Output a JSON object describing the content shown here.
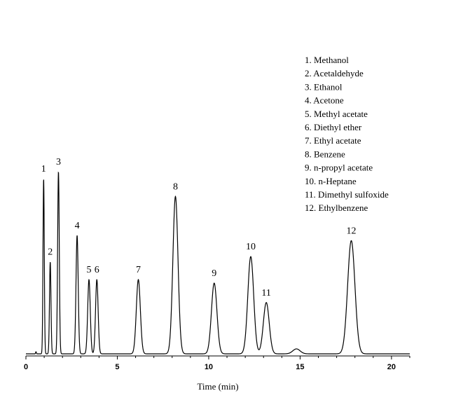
{
  "chart_data": {
    "type": "line",
    "xlabel": "Time (min)",
    "ylabel": "",
    "xlim": [
      0,
      21
    ],
    "xticks": [
      0,
      5,
      10,
      15,
      20
    ],
    "grid": false,
    "legend_position": "top-right",
    "legend": [
      "1. Methanol",
      "2. Acetaldehyde",
      "3. Ethanol",
      "4. Acetone",
      "5. Methyl acetate",
      "6. Diethyl ether",
      "7. Ethyl acetate",
      "8. Benzene",
      "9. n-propyl acetate",
      "10. n-Heptane",
      "11. Dimethyl sulfoxide",
      "12. Ethylbenzene"
    ],
    "peaks": [
      {
        "label": "1",
        "rt": 0.97,
        "height": 0.99,
        "width": 0.035
      },
      {
        "label": "2",
        "rt": 1.33,
        "height": 0.52,
        "width": 0.04
      },
      {
        "label": "3",
        "rt": 1.78,
        "height": 1.03,
        "width": 0.045
      },
      {
        "label": "4",
        "rt": 2.8,
        "height": 0.67,
        "width": 0.06
      },
      {
        "label": "5",
        "rt": 3.45,
        "height": 0.42,
        "width": 0.07
      },
      {
        "label": "6",
        "rt": 3.88,
        "height": 0.42,
        "width": 0.07
      },
      {
        "label": "7",
        "rt": 6.15,
        "height": 0.42,
        "width": 0.11
      },
      {
        "label": "8",
        "rt": 8.18,
        "height": 0.89,
        "width": 0.14
      },
      {
        "label": "9",
        "rt": 10.3,
        "height": 0.4,
        "width": 0.15
      },
      {
        "label": "10",
        "rt": 12.3,
        "height": 0.55,
        "width": 0.16
      },
      {
        "label": "11",
        "rt": 13.15,
        "height": 0.29,
        "width": 0.16
      },
      {
        "label": "12",
        "rt": 17.8,
        "height": 0.64,
        "width": 0.2
      }
    ],
    "minor_features": [
      {
        "rt": 0.55,
        "height": 0.012,
        "width": 0.02
      },
      {
        "rt": 14.8,
        "height": 0.028,
        "width": 0.2
      }
    ],
    "ylim": [
      0,
      1.2
    ]
  }
}
